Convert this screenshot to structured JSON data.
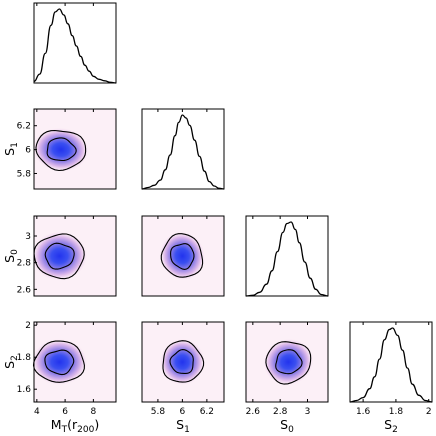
{
  "chart_data": {
    "type": "corner_plot",
    "parameters": [
      {
        "id": "MT",
        "label": "M",
        "sub": "T",
        "suffix": "(r",
        "suffix_sub": "200",
        "suffix_end": ")",
        "range": [
          3.8,
          9.6
        ],
        "ticks": [
          4,
          6,
          8
        ],
        "tick_labels": [
          "4",
          "6",
          "8"
        ],
        "mean": 5.8,
        "sd": 0.75
      },
      {
        "id": "S1",
        "label": "S",
        "sub": "1",
        "range": [
          5.67,
          6.34
        ],
        "ticks": [
          5.8,
          6.0,
          6.2
        ],
        "tick_labels": [
          "5.8",
          "6",
          "6.2"
        ],
        "mean": 6.0,
        "sd": 0.07
      },
      {
        "id": "S0",
        "label": "S",
        "sub": "0",
        "range": [
          2.55,
          3.15
        ],
        "ticks": [
          2.6,
          2.8,
          3.0
        ],
        "tick_labels": [
          "2.6",
          "2.8",
          "3"
        ],
        "mean": 2.86,
        "sd": 0.07
      },
      {
        "id": "S2",
        "label": "S",
        "sub": "2",
        "range": [
          1.52,
          2.02
        ],
        "ticks": [
          1.6,
          1.8,
          2.0
        ],
        "tick_labels": [
          "1.6",
          "1.8",
          "2"
        ],
        "mean": 1.77,
        "sd": 0.055
      }
    ],
    "marginals": [
      {
        "param": "MT",
        "x": [
          3.8,
          4.2,
          4.6,
          5.0,
          5.3,
          5.6,
          5.9,
          6.2,
          6.5,
          6.8,
          7.1,
          7.4,
          7.7,
          8.0,
          8.4,
          8.8,
          9.2,
          9.6
        ],
        "y": [
          0.02,
          0.12,
          0.4,
          0.78,
          0.96,
          1.0,
          0.92,
          0.8,
          0.64,
          0.5,
          0.36,
          0.24,
          0.16,
          0.09,
          0.05,
          0.03,
          0.01,
          0.0
        ]
      },
      {
        "param": "S1",
        "x": [
          5.67,
          5.72,
          5.77,
          5.82,
          5.86,
          5.9,
          5.94,
          5.97,
          6.0,
          6.03,
          6.06,
          6.1,
          6.14,
          6.18,
          6.22,
          6.26,
          6.3,
          6.34
        ],
        "y": [
          0.0,
          0.02,
          0.05,
          0.12,
          0.26,
          0.46,
          0.72,
          0.9,
          1.0,
          0.96,
          0.86,
          0.66,
          0.44,
          0.24,
          0.1,
          0.04,
          0.01,
          0.0
        ]
      },
      {
        "param": "S0",
        "x": [
          2.55,
          2.6,
          2.65,
          2.7,
          2.74,
          2.78,
          2.82,
          2.85,
          2.88,
          2.91,
          2.94,
          2.98,
          3.02,
          3.06,
          3.1,
          3.15
        ],
        "y": [
          0.0,
          0.01,
          0.05,
          0.16,
          0.34,
          0.6,
          0.86,
          0.98,
          1.0,
          0.9,
          0.72,
          0.46,
          0.24,
          0.09,
          0.02,
          0.0
        ]
      },
      {
        "param": "S2",
        "x": [
          1.52,
          1.56,
          1.6,
          1.64,
          1.67,
          1.7,
          1.73,
          1.76,
          1.78,
          1.81,
          1.84,
          1.87,
          1.9,
          1.94,
          1.98,
          2.02
        ],
        "y": [
          0.0,
          0.02,
          0.06,
          0.18,
          0.34,
          0.58,
          0.84,
          0.98,
          1.0,
          0.9,
          0.7,
          0.46,
          0.24,
          0.09,
          0.02,
          0.0
        ]
      }
    ],
    "joint": [
      {
        "x": "MT",
        "y": "S1",
        "center": [
          5.7,
          6.0
        ],
        "corr": -0.1
      },
      {
        "x": "MT",
        "y": "S0",
        "center": [
          5.6,
          2.85
        ],
        "corr": 0.05
      },
      {
        "x": "S1",
        "y": "S0",
        "center": [
          6.0,
          2.85
        ],
        "corr": 0.35
      },
      {
        "x": "MT",
        "y": "S2",
        "center": [
          5.6,
          1.77
        ],
        "corr": 0.0
      },
      {
        "x": "S1",
        "y": "S2",
        "center": [
          6.0,
          1.77
        ],
        "corr": 0.0
      },
      {
        "x": "S0",
        "y": "S2",
        "center": [
          2.86,
          1.77
        ],
        "corr": 0.35
      }
    ],
    "contour_levels": [
      "68%",
      "95%"
    ],
    "colors": {
      "core": "#2233ee",
      "outer": "#f5dcef",
      "background": "#fcf0f7",
      "line": "#000000"
    },
    "grid": false,
    "legend": "none"
  }
}
